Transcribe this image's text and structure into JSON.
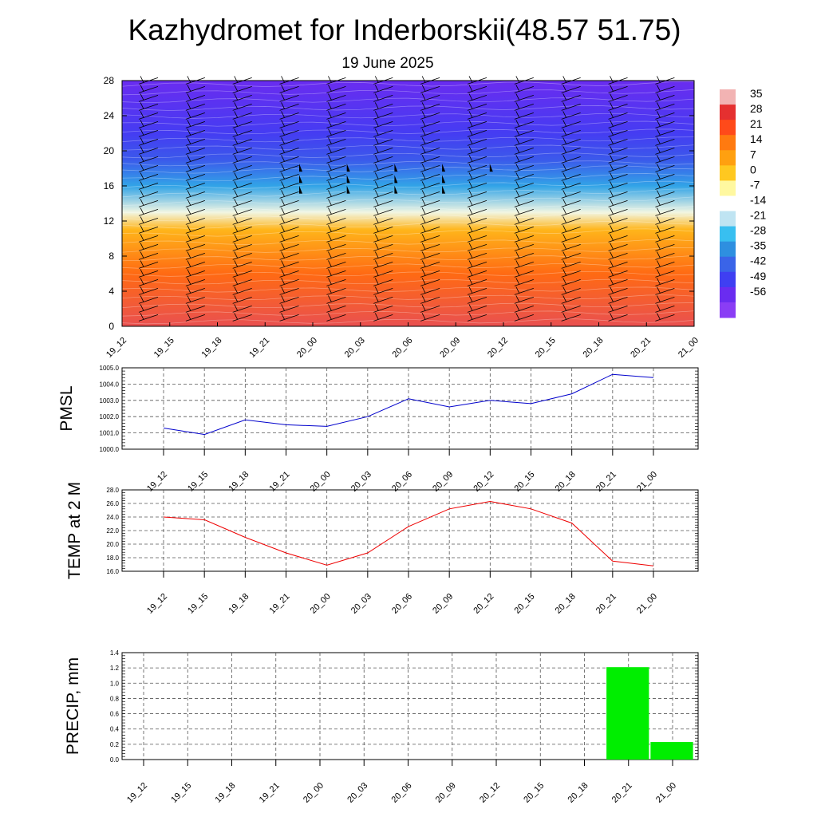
{
  "title": "Kazhydromet for Inderborskii(48.57 51.75)",
  "subtitle": "19 June 2025",
  "chart_data": [
    {
      "type": "heatmap",
      "x_ticks": [
        "19_12",
        "19_15",
        "19_18",
        "19_21",
        "20_00",
        "20_03",
        "20_06",
        "20_09",
        "20_12",
        "20_15",
        "20_18",
        "20_21",
        "21_00"
      ],
      "y_ticks": [
        "0",
        "4",
        "8",
        "12",
        "16",
        "20",
        "24",
        "28"
      ],
      "ylim": [
        0,
        28
      ],
      "colorbar_labels": [
        "35",
        "28",
        "21",
        "14",
        "7",
        "0",
        "-7",
        "-14",
        "-21",
        "-28",
        "-35",
        "-42",
        "-49",
        "-56"
      ],
      "colorbar_colors": [
        "#f2b3b3",
        "#e53030",
        "#ff4a1a",
        "#ff7a10",
        "#ffa010",
        "#ffc820",
        "#fff8a0",
        "#ffffff",
        "#bfe4f2",
        "#38bff0",
        "#2e8fe0",
        "#3a64e8",
        "#3f3ff2",
        "#6a2cf0",
        "#8a3df5"
      ],
      "temperature_profile": [
        {
          "h": 0,
          "t": 30
        },
        {
          "h": 6,
          "t": 16
        },
        {
          "h": 11,
          "t": 4
        },
        {
          "h": 13,
          "t": -12
        },
        {
          "h": 16,
          "t": -32
        },
        {
          "h": 19,
          "t": -44
        },
        {
          "h": 22,
          "t": -50
        },
        {
          "h": 28,
          "t": -56
        }
      ]
    },
    {
      "type": "line",
      "ylabel": "PMSL",
      "x": [
        "19_12",
        "19_15",
        "19_18",
        "19_21",
        "20_00",
        "20_03",
        "20_06",
        "20_09",
        "20_12",
        "20_15",
        "20_18",
        "20_21",
        "21_00"
      ],
      "values": [
        1001.3,
        1000.9,
        1001.8,
        1001.5,
        1001.4,
        1002.0,
        1003.1,
        1002.6,
        1003.0,
        1002.8,
        1003.4,
        1004.6,
        1004.4
      ],
      "ylim": [
        1000.0,
        1005.0
      ],
      "y_ticks": [
        "1000.0",
        "1001.0",
        "1002.0",
        "1003.0",
        "1004.0",
        "1005.0"
      ],
      "color": "#0000cc"
    },
    {
      "type": "line",
      "ylabel": "TEMP at 2 M",
      "x": [
        "19_12",
        "19_15",
        "19_18",
        "19_21",
        "20_00",
        "20_03",
        "20_06",
        "20_09",
        "20_12",
        "20_15",
        "20_18",
        "20_21",
        "21_00"
      ],
      "values": [
        24.0,
        23.6,
        21.0,
        18.7,
        16.9,
        18.7,
        22.6,
        25.2,
        26.3,
        25.2,
        23.1,
        17.5,
        16.8
      ],
      "ylim": [
        16.0,
        28.0
      ],
      "y_ticks": [
        "16.0",
        "18.0",
        "20.0",
        "22.0",
        "24.0",
        "26.0",
        "28.0"
      ],
      "color": "#ee0000"
    },
    {
      "type": "bar",
      "ylabel": "PRECIP, mm",
      "x": [
        "19_12",
        "19_15",
        "19_18",
        "19_21",
        "20_00",
        "20_03",
        "20_06",
        "20_09",
        "20_12",
        "20_15",
        "20_18",
        "20_21",
        "21_00"
      ],
      "values": [
        0,
        0,
        0,
        0,
        0,
        0,
        0,
        0,
        0,
        0,
        0,
        1.21,
        0.23
      ],
      "ylim": [
        0.0,
        1.4
      ],
      "y_ticks": [
        "0.0",
        "0.2",
        "0.4",
        "0.6",
        "0.8",
        "1.0",
        "1.2",
        "1.4"
      ],
      "color": "#00ee00"
    }
  ]
}
